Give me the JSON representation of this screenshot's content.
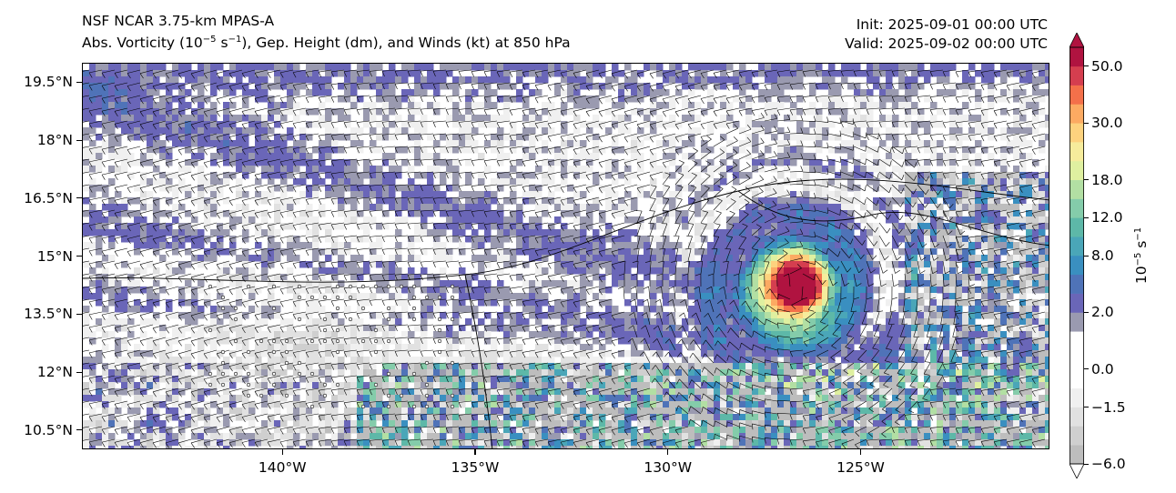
{
  "title": {
    "line1": "NSF NCAR 3.75-km MPAS-A",
    "line2_prefix": "Abs. Vorticity (10",
    "line2_exp1": "−5",
    "line2_mid": " s",
    "line2_exp2": "−1",
    "line2_suffix": "), Gep. Height (dm), and Winds (kt) at 850 hPa"
  },
  "times": {
    "init": "Init: 2025-09-01 00:00 UTC",
    "valid": "Valid: 2025-09-02 00:00 UTC"
  },
  "map": {
    "lat_labels": [
      "19.5°N",
      "18°N",
      "16.5°N",
      "15°N",
      "13.5°N",
      "12°N",
      "10.5°N"
    ],
    "lat_values": [
      19.5,
      18,
      16.5,
      15,
      13.5,
      12,
      10.5
    ],
    "lat_range": [
      10.0,
      20.0
    ],
    "lon_labels": [
      "140°W",
      "135°W",
      "130°W",
      "125°W"
    ],
    "lon_values": [
      -140,
      -135,
      -130,
      -125
    ],
    "lon_range": [
      -145.2,
      -120.1
    ],
    "cyclone_center": {
      "lon": -126.7,
      "lat": 14.25
    }
  },
  "colorbar": {
    "unit_base": "10",
    "unit_exp1": "−5",
    "unit_mid": " s",
    "unit_exp2": "−1",
    "labels": [
      "50.0",
      "30.0",
      "18.0",
      "12.0",
      "8.0",
      "2.0",
      "0.0",
      "−1.5",
      "−6.0"
    ],
    "levels": [
      -6,
      -4.5,
      -3,
      -1.5,
      -0.5,
      0,
      0.5,
      1,
      2,
      4,
      6,
      8,
      10,
      12,
      15,
      18,
      22,
      26,
      30,
      36,
      42,
      50
    ],
    "colors": [
      "#bdbdbd",
      "#cfcfcf",
      "#e1e1e1",
      "#f0f0f0",
      "#ffffff",
      "#ffffff",
      "#ffffff",
      "#9a9ab0",
      "#6a66b8",
      "#4f73b8",
      "#3a8fc0",
      "#4aa6b8",
      "#5db8a8",
      "#84ccaa",
      "#b2dfa3",
      "#dff0a0",
      "#f6ec9c",
      "#fdd27e",
      "#fcaa62",
      "#f4704a",
      "#d53e4f",
      "#b01340"
    ]
  }
}
